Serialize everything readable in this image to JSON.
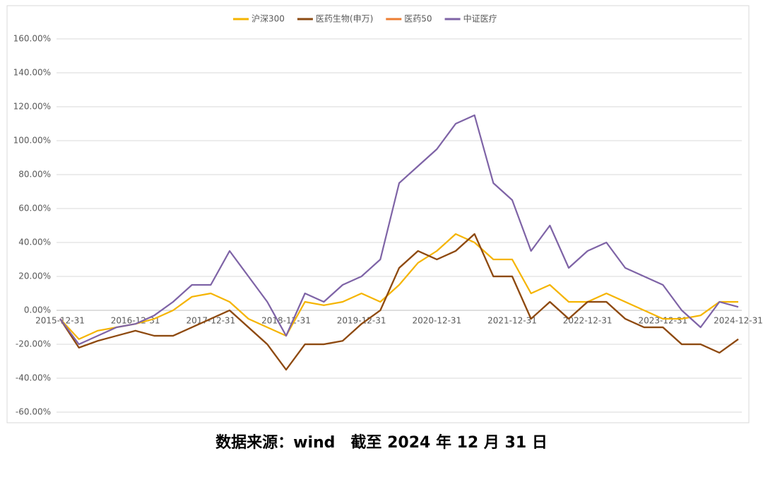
{
  "chart_data": {
    "type": "line",
    "categories": [
      "2015-12-31",
      null,
      null,
      null,
      "2016-12-31",
      null,
      null,
      null,
      "2017-12-31",
      null,
      null,
      null,
      "2018-12-31",
      null,
      null,
      null,
      "2019-12-31",
      null,
      null,
      null,
      "2020-12-31",
      null,
      null,
      null,
      "2021-12-31",
      null,
      null,
      null,
      "2022-12-31",
      null,
      null,
      null,
      "2023-12-31",
      null,
      null,
      null,
      "2024-12-31"
    ],
    "series": [
      {
        "name": "沪深300",
        "color": "#f5b400",
        "values": [
          -5,
          -17,
          -12,
          -10,
          -8,
          -5,
          0,
          8,
          10,
          5,
          -5,
          -10,
          -15,
          5,
          3,
          5,
          10,
          5,
          15,
          28,
          35,
          45,
          40,
          30,
          30,
          10,
          15,
          5,
          5,
          10,
          5,
          0,
          -5,
          -5,
          -3,
          5,
          5
        ]
      },
      {
        "name": "医药50",
        "color": "#ed7d31",
        "values": [
          -5,
          -22,
          -18,
          -15,
          -12,
          -15,
          -15,
          -10,
          -5,
          0,
          -10,
          -20,
          -35,
          -20,
          -20,
          -18,
          -8,
          0,
          25,
          35,
          30,
          35,
          45,
          20,
          20,
          -5,
          5,
          -5,
          5,
          5,
          -5,
          -10,
          -10,
          -20,
          -20,
          -25,
          -17
        ]
      },
      {
        "name": "医药生物(申万)",
        "color": "#8b4a12",
        "values": [
          -5,
          -22,
          -18,
          -15,
          -12,
          -15,
          -15,
          -10,
          -5,
          0,
          -10,
          -20,
          -35,
          -20,
          -20,
          -18,
          -8,
          0,
          25,
          35,
          30,
          35,
          45,
          20,
          20,
          -5,
          5,
          -5,
          5,
          5,
          -5,
          -10,
          -10,
          -20,
          -20,
          -25,
          -17
        ]
      },
      {
        "name": "中证医疗",
        "color": "#7e63a6",
        "values": [
          -5,
          -20,
          -15,
          -10,
          -8,
          -3,
          5,
          15,
          15,
          35,
          20,
          5,
          -15,
          10,
          5,
          15,
          20,
          30,
          75,
          85,
          95,
          110,
          115,
          75,
          65,
          35,
          50,
          25,
          35,
          40,
          25,
          20,
          15,
          0,
          -10,
          5,
          2
        ]
      }
    ],
    "legend_order": [
      0,
      2,
      1,
      3
    ],
    "ylim": [
      -60,
      160
    ],
    "yticks": [
      {
        "value": -60,
        "label": "-60.00%"
      },
      {
        "value": -40,
        "label": "-40.00%"
      },
      {
        "value": -20,
        "label": "-20.00%"
      },
      {
        "value": 0,
        "label": "0.00%"
      },
      {
        "value": 20,
        "label": "20.00%"
      },
      {
        "value": 40,
        "label": "40.00%"
      },
      {
        "value": 60,
        "label": "60.00%"
      },
      {
        "value": 80,
        "label": "80.00%"
      },
      {
        "value": 100,
        "label": "100.00%"
      },
      {
        "value": 120,
        "label": "120.00%"
      },
      {
        "value": 140,
        "label": "140.00%"
      },
      {
        "value": 160,
        "label": "160.00%"
      }
    ],
    "grid": true,
    "legend": "top"
  },
  "caption": "数据来源：wind　截至 2024 年 12 月 31 日"
}
